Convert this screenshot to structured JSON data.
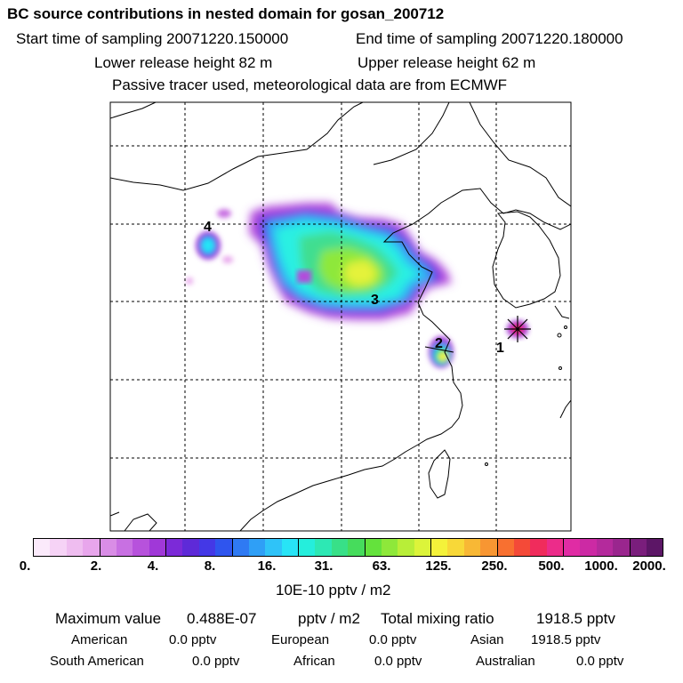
{
  "header": {
    "title": "BC  source contributions in nested domain for gosan_200712",
    "start_time": "Start time of sampling 20071220.150000",
    "end_time": "End time of sampling 20071220.180000",
    "lower_height": "Lower release height   82 m",
    "upper_height": "Upper release height   62 m",
    "tracer_note": "Passive tracer used, meteorological data are from ECMWF"
  },
  "map": {
    "markers": [
      {
        "label": "1"
      },
      {
        "label": "2"
      },
      {
        "label": "3"
      },
      {
        "label": "4"
      }
    ],
    "receptor_symbol": "star"
  },
  "colorbar": {
    "colors": [
      "#fbeafb",
      "#f6d3f6",
      "#efbdf0",
      "#e8a6ec",
      "#d98de6",
      "#c870e2",
      "#b752dc",
      "#a038d8",
      "#7c2ad8",
      "#5e2ad8",
      "#4438e6",
      "#2f55ee",
      "#2f7af3",
      "#2f9ff6",
      "#2fc3f8",
      "#28e4f6",
      "#25eedc",
      "#2de8b4",
      "#38e088",
      "#46dc5c",
      "#64e23c",
      "#8ee83a",
      "#b8ee38",
      "#dcf43a",
      "#f4f23a",
      "#f8d838",
      "#f8b835",
      "#f89632",
      "#f87030",
      "#f44a38",
      "#f02c5c",
      "#ec2c8a",
      "#e02ca4",
      "#cc2aa4",
      "#b42a9c",
      "#9a268e",
      "#7a1e7c",
      "#5c1666"
    ],
    "tick_labels": [
      "0.",
      "2.",
      "4.",
      "8.",
      "16.",
      "31.",
      "63.",
      "125.",
      "250.",
      "500.",
      "1000.",
      "2000."
    ],
    "units": "10E-10 pptv / m2"
  },
  "stats": {
    "max_label": "Maximum value",
    "max_value": "0.488E-07",
    "max_unit": "pptv / m2",
    "total_label": "Total mixing ratio",
    "total_value": "1918.5 pptv",
    "sources": [
      {
        "name": "American",
        "value": "0.0 pptv"
      },
      {
        "name": "European",
        "value": "0.0 pptv"
      },
      {
        "name": "Asian",
        "value": "1918.5 pptv"
      },
      {
        "name": "South American",
        "value": "0.0 pptv"
      },
      {
        "name": "African",
        "value": "0.0 pptv"
      },
      {
        "name": "Australian",
        "value": "0.0 pptv"
      }
    ]
  }
}
